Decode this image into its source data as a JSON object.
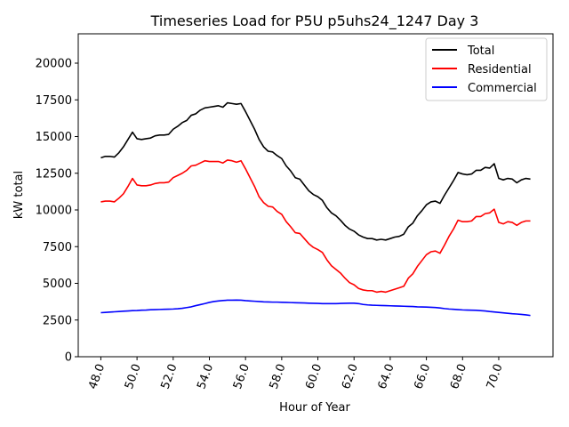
{
  "chart_data": {
    "type": "line",
    "title": "Timeseries Load for P5U p5uhs24_1247  Day 3",
    "xlabel": "Hour of Year",
    "ylabel": "kW total",
    "xlim": [
      46.75,
      73.0
    ],
    "ylim": [
      0,
      22000
    ],
    "x_ticks": [
      48,
      50,
      52,
      54,
      56,
      58,
      60,
      62,
      64,
      66,
      68,
      70
    ],
    "x_tick_labels": [
      "48.0",
      "50.0",
      "52.0",
      "54.0",
      "56.0",
      "58.0",
      "60.0",
      "62.0",
      "64.0",
      "66.0",
      "68.0",
      "70.0"
    ],
    "y_ticks": [
      0,
      2500,
      5000,
      7500,
      10000,
      12500,
      15000,
      17500,
      20000
    ],
    "y_tick_labels": [
      "0",
      "2500",
      "5000",
      "7500",
      "10000",
      "12500",
      "15000",
      "17500",
      "20000"
    ],
    "legend_position": "top-right",
    "x": [
      48.0,
      48.25,
      48.5,
      48.75,
      49.0,
      49.25,
      49.5,
      49.75,
      50.0,
      50.25,
      50.5,
      50.75,
      51.0,
      51.25,
      51.5,
      51.75,
      52.0,
      52.25,
      52.5,
      52.75,
      53.0,
      53.25,
      53.5,
      53.75,
      54.0,
      54.25,
      54.5,
      54.75,
      55.0,
      55.25,
      55.5,
      55.75,
      56.0,
      56.25,
      56.5,
      56.75,
      57.0,
      57.25,
      57.5,
      57.75,
      58.0,
      58.25,
      58.5,
      58.75,
      59.0,
      59.25,
      59.5,
      59.75,
      60.0,
      60.25,
      60.5,
      60.75,
      61.0,
      61.25,
      61.5,
      61.75,
      62.0,
      62.25,
      62.5,
      62.75,
      63.0,
      63.25,
      63.5,
      63.75,
      64.0,
      64.25,
      64.5,
      64.75,
      65.0,
      65.25,
      65.5,
      65.75,
      66.0,
      66.25,
      66.5,
      66.75,
      67.0,
      67.25,
      67.5,
      67.75,
      68.0,
      68.25,
      68.5,
      68.75,
      69.0,
      69.25,
      69.5,
      69.75,
      70.0,
      70.25,
      70.5,
      70.75,
      71.0,
      71.25,
      71.5,
      71.75
    ],
    "series": [
      {
        "name": "Total",
        "color": "#000000",
        "values": [
          13550,
          13650,
          13650,
          13600,
          13900,
          14300,
          14800,
          15300,
          14850,
          14800,
          14850,
          14900,
          15050,
          15100,
          15100,
          15150,
          15500,
          15700,
          15950,
          16100,
          16450,
          16550,
          16800,
          16950,
          17000,
          17050,
          17100,
          17000,
          17300,
          17250,
          17200,
          17250,
          16700,
          16100,
          15500,
          14800,
          14300,
          14000,
          13950,
          13700,
          13500,
          13000,
          12650,
          12200,
          12100,
          11700,
          11300,
          11050,
          10900,
          10650,
          10150,
          9800,
          9600,
          9300,
          8950,
          8700,
          8550,
          8300,
          8150,
          8050,
          8050,
          7950,
          8000,
          7950,
          8050,
          8150,
          8200,
          8350,
          8850,
          9100,
          9600,
          9950,
          10350,
          10550,
          10600,
          10450,
          11000,
          11500,
          12000,
          12550,
          12450,
          12400,
          12450,
          12700,
          12700,
          12900,
          12850,
          13150,
          12150,
          12050,
          12150,
          12100,
          11850,
          12050,
          12150,
          12100
        ]
      },
      {
        "name": "Residential",
        "color": "#ff0000",
        "values": [
          10550,
          10600,
          10600,
          10550,
          10800,
          11100,
          11600,
          12150,
          11700,
          11650,
          11650,
          11700,
          11800,
          11850,
          11850,
          11900,
          12200,
          12350,
          12500,
          12700,
          13000,
          13050,
          13200,
          13350,
          13300,
          13300,
          13300,
          13200,
          13400,
          13350,
          13250,
          13350,
          12800,
          12200,
          11600,
          10900,
          10500,
          10250,
          10200,
          9900,
          9700,
          9200,
          8850,
          8450,
          8400,
          8050,
          7700,
          7450,
          7300,
          7100,
          6600,
          6200,
          5950,
          5700,
          5350,
          5050,
          4900,
          4650,
          4550,
          4500,
          4500,
          4400,
          4450,
          4400,
          4500,
          4600,
          4700,
          4800,
          5350,
          5650,
          6150,
          6550,
          6950,
          7150,
          7200,
          7050,
          7600,
          8200,
          8700,
          9300,
          9200,
          9200,
          9250,
          9550,
          9550,
          9750,
          9800,
          10050,
          9150,
          9050,
          9200,
          9150,
          8950,
          9150,
          9250,
          9250
        ]
      },
      {
        "name": "Commercial",
        "color": "#0000ff",
        "values": [
          3000,
          3020,
          3040,
          3060,
          3080,
          3100,
          3120,
          3140,
          3150,
          3170,
          3180,
          3200,
          3210,
          3220,
          3230,
          3240,
          3250,
          3270,
          3300,
          3350,
          3400,
          3480,
          3550,
          3620,
          3700,
          3760,
          3800,
          3830,
          3850,
          3850,
          3860,
          3850,
          3820,
          3800,
          3780,
          3760,
          3740,
          3730,
          3720,
          3720,
          3710,
          3700,
          3690,
          3680,
          3670,
          3660,
          3650,
          3640,
          3630,
          3620,
          3620,
          3620,
          3620,
          3630,
          3640,
          3650,
          3650,
          3620,
          3560,
          3530,
          3510,
          3500,
          3490,
          3480,
          3470,
          3460,
          3450,
          3440,
          3430,
          3420,
          3400,
          3390,
          3380,
          3370,
          3350,
          3320,
          3280,
          3250,
          3230,
          3210,
          3190,
          3180,
          3170,
          3160,
          3140,
          3120,
          3080,
          3050,
          3020,
          2990,
          2960,
          2930,
          2910,
          2880,
          2850,
          2810
        ]
      }
    ]
  }
}
